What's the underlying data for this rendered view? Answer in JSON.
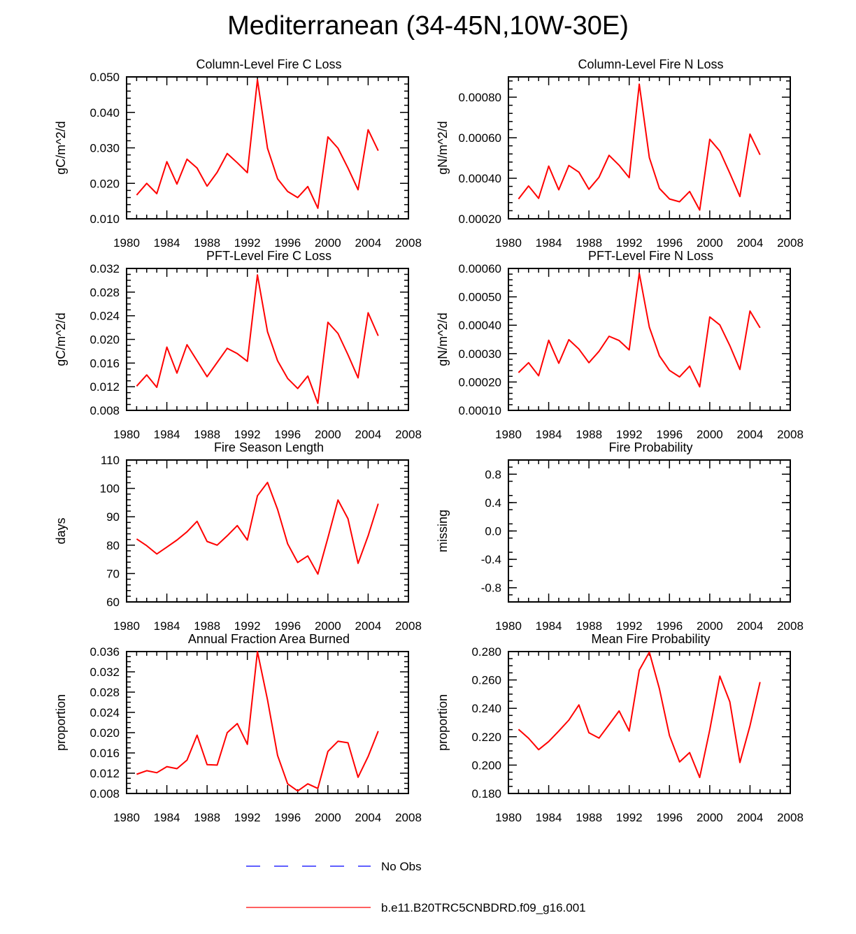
{
  "title": "Mediterranean (34-45N,10W-30E)",
  "colors": {
    "model": "#ff0000",
    "obs": "#0000ff",
    "axis": "#000000"
  },
  "legend": {
    "obs_label": "No Obs",
    "model_label": "b.e11.B20TRC5CNBDRD.f09_g16.001"
  },
  "chart_data": [
    {
      "type": "line",
      "title": "Column-Level Fire C Loss",
      "ylabel": "gC/m^2/d",
      "xlabel": "",
      "xlim": [
        1980,
        2008
      ],
      "ylim": [
        0.01,
        0.05
      ],
      "xticks": [
        1980,
        1984,
        1988,
        1992,
        1996,
        2000,
        2004,
        2008
      ],
      "xtick_labels": [
        "1980",
        "1984",
        "1988",
        "1992",
        "1996",
        "2000",
        "2004",
        "2008"
      ],
      "yticks": [
        0.01,
        0.02,
        0.03,
        0.04,
        0.05
      ],
      "ytick_labels": [
        "0.010",
        "0.020",
        "0.030",
        "0.040",
        "0.050"
      ],
      "ymajor_step": 0.01,
      "ymin_per_major": 5,
      "x": [
        1981,
        1982,
        1983,
        1984,
        1985,
        1986,
        1987,
        1988,
        1989,
        1990,
        1991,
        1992,
        1993,
        1994,
        1995,
        1996,
        1997,
        1998,
        1999,
        2000,
        2001,
        2002,
        2003,
        2004,
        2005
      ],
      "series": [
        {
          "name": "b.e11.B20TRC5CNBDRD.f09_g16.001",
          "values": [
            0.0167,
            0.02,
            0.0171,
            0.0261,
            0.0198,
            0.0268,
            0.0243,
            0.0192,
            0.0231,
            0.0284,
            0.0258,
            0.023,
            0.0492,
            0.0299,
            0.0213,
            0.0177,
            0.016,
            0.0191,
            0.013,
            0.0331,
            0.0299,
            0.0243,
            0.0182,
            0.0351,
            0.0292
          ]
        }
      ]
    },
    {
      "type": "line",
      "title": "Column-Level Fire N Loss",
      "ylabel": "gN/m^2/d",
      "xlabel": "",
      "xlim": [
        1980,
        2008
      ],
      "ylim": [
        0.0002,
        0.0009
      ],
      "xticks": [
        1980,
        1984,
        1988,
        1992,
        1996,
        2000,
        2004,
        2008
      ],
      "xtick_labels": [
        "1980",
        "1984",
        "1988",
        "1992",
        "1996",
        "2000",
        "2004",
        "2008"
      ],
      "yticks": [
        0.0002,
        0.0004,
        0.0006,
        0.0008
      ],
      "ytick_labels": [
        "0.00020",
        "0.00040",
        "0.00060",
        "0.00080"
      ],
      "ymajor_step": 0.0002,
      "ymin_per_major": 5,
      "x": [
        1981,
        1982,
        1983,
        1984,
        1985,
        1986,
        1987,
        1988,
        1989,
        1990,
        1991,
        1992,
        1993,
        1994,
        1995,
        1996,
        1997,
        1998,
        1999,
        2000,
        2001,
        2002,
        2003,
        2004,
        2005
      ],
      "series": [
        {
          "name": "b.e11.B20TRC5CNBDRD.f09_g16.001",
          "values": [
            0.000298,
            0.000362,
            0.000301,
            0.00046,
            0.000343,
            0.000463,
            0.00043,
            0.000346,
            0.000405,
            0.000513,
            0.000464,
            0.000403,
            0.000864,
            0.000502,
            0.00035,
            0.000298,
            0.000284,
            0.000335,
            0.000243,
            0.000592,
            0.000534,
            0.000425,
            0.00031,
            0.000618,
            0.000516
          ]
        }
      ]
    },
    {
      "type": "line",
      "title": "PFT-Level Fire C Loss",
      "ylabel": "gC/m^2/d",
      "xlabel": "",
      "xlim": [
        1980,
        2008
      ],
      "ylim": [
        0.008,
        0.032
      ],
      "xticks": [
        1980,
        1984,
        1988,
        1992,
        1996,
        2000,
        2004,
        2008
      ],
      "xtick_labels": [
        "1980",
        "1984",
        "1988",
        "1992",
        "1996",
        "2000",
        "2004",
        "2008"
      ],
      "yticks": [
        0.008,
        0.012,
        0.016,
        0.02,
        0.024,
        0.028,
        0.032
      ],
      "ytick_labels": [
        "0.008",
        "0.012",
        "0.016",
        "0.020",
        "0.024",
        "0.028",
        "0.032"
      ],
      "ymajor_step": 0.004,
      "ymin_per_major": 4,
      "x": [
        1981,
        1982,
        1983,
        1984,
        1985,
        1986,
        1987,
        1988,
        1989,
        1990,
        1991,
        1992,
        1993,
        1994,
        1995,
        1996,
        1997,
        1998,
        1999,
        2000,
        2001,
        2002,
        2003,
        2004,
        2005
      ],
      "series": [
        {
          "name": "b.e11.B20TRC5CNBDRD.f09_g16.001",
          "values": [
            0.0121,
            0.014,
            0.0119,
            0.0187,
            0.0143,
            0.0191,
            0.0164,
            0.0137,
            0.0161,
            0.0185,
            0.0176,
            0.0163,
            0.0309,
            0.0213,
            0.0164,
            0.0134,
            0.0117,
            0.0138,
            0.0092,
            0.0229,
            0.021,
            0.0174,
            0.0135,
            0.0245,
            0.0206
          ]
        }
      ]
    },
    {
      "type": "line",
      "title": "PFT-Level Fire N Loss",
      "ylabel": "gN/m^2/d",
      "xlabel": "",
      "xlim": [
        1980,
        2008
      ],
      "ylim": [
        0.0001,
        0.0006
      ],
      "xticks": [
        1980,
        1984,
        1988,
        1992,
        1996,
        2000,
        2004,
        2008
      ],
      "xtick_labels": [
        "1980",
        "1984",
        "1988",
        "1992",
        "1996",
        "2000",
        "2004",
        "2008"
      ],
      "yticks": [
        0.0001,
        0.0002,
        0.0003,
        0.0004,
        0.0005,
        0.0006
      ],
      "ytick_labels": [
        "0.00010",
        "0.00020",
        "0.00030",
        "0.00040",
        "0.00050",
        "0.00060"
      ],
      "ymajor_step": 0.0001,
      "ymin_per_major": 5,
      "x": [
        1981,
        1982,
        1983,
        1984,
        1985,
        1986,
        1987,
        1988,
        1989,
        1990,
        1991,
        1992,
        1993,
        1994,
        1995,
        1996,
        1997,
        1998,
        1999,
        2000,
        2001,
        2002,
        2003,
        2004,
        2005
      ],
      "series": [
        {
          "name": "b.e11.B20TRC5CNBDRD.f09_g16.001",
          "values": [
            0.000233,
            0.000268,
            0.000222,
            0.000347,
            0.000266,
            0.000349,
            0.000316,
            0.000268,
            0.000308,
            0.000361,
            0.000346,
            0.000313,
            0.000583,
            0.000393,
            0.000292,
            0.000241,
            0.000218,
            0.000256,
            0.000183,
            0.000429,
            0.000401,
            0.000328,
            0.000244,
            0.00045,
            0.000391
          ]
        }
      ]
    },
    {
      "type": "line",
      "title": "Fire Season Length",
      "ylabel": "days",
      "xlabel": "",
      "xlim": [
        1980,
        2008
      ],
      "ylim": [
        60,
        110
      ],
      "xticks": [
        1980,
        1984,
        1988,
        1992,
        1996,
        2000,
        2004,
        2008
      ],
      "xtick_labels": [
        "1980",
        "1984",
        "1988",
        "1992",
        "1996",
        "2000",
        "2004",
        "2008"
      ],
      "yticks": [
        60,
        70,
        80,
        90,
        100,
        110
      ],
      "ytick_labels": [
        "60",
        "70",
        "80",
        "90",
        "100",
        "110"
      ],
      "ymajor_step": 10,
      "ymin_per_major": 5,
      "x": [
        1981,
        1982,
        1983,
        1984,
        1985,
        1986,
        1987,
        1988,
        1989,
        1990,
        1991,
        1992,
        1993,
        1994,
        1995,
        1996,
        1997,
        1998,
        1999,
        2000,
        2001,
        2002,
        2003,
        2004,
        2005
      ],
      "series": [
        {
          "name": "b.e11.B20TRC5CNBDRD.f09_g16.001",
          "values": [
            82.2,
            79.8,
            76.9,
            79.3,
            81.8,
            84.7,
            88.4,
            81.3,
            80.0,
            83.3,
            86.9,
            81.8,
            97.4,
            102.1,
            92.6,
            80.5,
            73.9,
            76.2,
            69.8,
            82.6,
            95.9,
            89.3,
            73.6,
            83.3,
            94.6
          ]
        }
      ]
    },
    {
      "type": "line",
      "title": "Fire Probability",
      "ylabel": "missing",
      "xlabel": "",
      "xlim": [
        1980,
        2008
      ],
      "ylim": [
        -1.0,
        1.0
      ],
      "xticks": [
        1980,
        1984,
        1988,
        1992,
        1996,
        2000,
        2004,
        2008
      ],
      "xtick_labels": [
        "1980",
        "1984",
        "1988",
        "1992",
        "1996",
        "2000",
        "2004",
        "2008"
      ],
      "yticks": [
        -0.8,
        -0.4,
        0.0,
        0.4,
        0.8
      ],
      "ytick_labels": [
        "-0.8",
        "-0.4",
        "0.0",
        "0.4",
        "0.8"
      ],
      "ymajor_step": 0.4,
      "ymin_per_major": 4,
      "x": [],
      "series": []
    },
    {
      "type": "line",
      "title": "Annual Fraction Area Burned",
      "ylabel": "proportion",
      "xlabel": "",
      "xlim": [
        1980,
        2008
      ],
      "ylim": [
        0.008,
        0.036
      ],
      "xticks": [
        1980,
        1984,
        1988,
        1992,
        1996,
        2000,
        2004,
        2008
      ],
      "xtick_labels": [
        "1980",
        "1984",
        "1988",
        "1992",
        "1996",
        "2000",
        "2004",
        "2008"
      ],
      "yticks": [
        0.008,
        0.012,
        0.016,
        0.02,
        0.024,
        0.028,
        0.032,
        0.036
      ],
      "ytick_labels": [
        "0.008",
        "0.012",
        "0.016",
        "0.020",
        "0.024",
        "0.028",
        "0.032",
        "0.036"
      ],
      "ymajor_step": 0.004,
      "ymin_per_major": 4,
      "x": [
        1981,
        1982,
        1983,
        1984,
        1985,
        1986,
        1987,
        1988,
        1989,
        1990,
        1991,
        1992,
        1993,
        1994,
        1995,
        1996,
        1997,
        1998,
        1999,
        2000,
        2001,
        2002,
        2003,
        2004,
        2005
      ],
      "series": [
        {
          "name": "b.e11.B20TRC5CNBDRD.f09_g16.001",
          "values": [
            0.0118,
            0.0125,
            0.0121,
            0.0133,
            0.0129,
            0.0146,
            0.0195,
            0.0137,
            0.0136,
            0.02,
            0.0218,
            0.0177,
            0.036,
            0.0265,
            0.0155,
            0.0099,
            0.0085,
            0.0099,
            0.009,
            0.0163,
            0.0183,
            0.018,
            0.0112,
            0.0153,
            0.0203
          ]
        }
      ]
    },
    {
      "type": "line",
      "title": "Mean Fire Probability",
      "ylabel": "proportion",
      "xlabel": "",
      "xlim": [
        1980,
        2008
      ],
      "ylim": [
        0.18,
        0.28
      ],
      "xticks": [
        1980,
        1984,
        1988,
        1992,
        1996,
        2000,
        2004,
        2008
      ],
      "xtick_labels": [
        "1980",
        "1984",
        "1988",
        "1992",
        "1996",
        "2000",
        "2004",
        "2008"
      ],
      "yticks": [
        0.18,
        0.2,
        0.22,
        0.24,
        0.26,
        0.28
      ],
      "ytick_labels": [
        "0.180",
        "0.200",
        "0.220",
        "0.240",
        "0.260",
        "0.280"
      ],
      "ymajor_step": 0.02,
      "ymin_per_major": 4,
      "x": [
        1981,
        1982,
        1983,
        1984,
        1985,
        1986,
        1987,
        1988,
        1989,
        1990,
        1991,
        1992,
        1993,
        1994,
        1995,
        1996,
        1997,
        1998,
        1999,
        2000,
        2001,
        2002,
        2003,
        2004,
        2005
      ],
      "series": [
        {
          "name": "b.e11.B20TRC5CNBDRD.f09_g16.001",
          "values": [
            0.2252,
            0.2189,
            0.2109,
            0.2166,
            0.224,
            0.2317,
            0.2424,
            0.2228,
            0.219,
            0.2285,
            0.2382,
            0.224,
            0.2669,
            0.2796,
            0.2538,
            0.2208,
            0.2022,
            0.2088,
            0.1913,
            0.2248,
            0.2627,
            0.2446,
            0.2018,
            0.2277,
            0.2585
          ]
        }
      ]
    }
  ]
}
